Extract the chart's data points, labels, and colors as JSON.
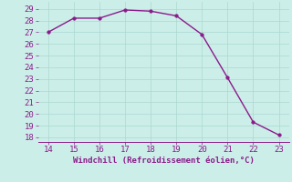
{
  "x": [
    14,
    15,
    16,
    17,
    18,
    19,
    20,
    21,
    22,
    23
  ],
  "y": [
    27.0,
    28.2,
    28.2,
    28.9,
    28.8,
    28.4,
    26.8,
    23.1,
    19.3,
    18.2
  ],
  "line_color": "#8b1a8b",
  "marker_color": "#8b1a8b",
  "bg_color": "#cceee8",
  "grid_color": "#aad8d0",
  "xlabel": "Windchill (Refroidissement éolien,°C)",
  "xlabel_color": "#8b1a8b",
  "xlabel_fontsize": 6.5,
  "tick_color": "#8b1a8b",
  "tick_fontsize": 6.5,
  "xlim": [
    13.6,
    23.4
  ],
  "ylim": [
    17.6,
    29.6
  ],
  "yticks": [
    18,
    19,
    20,
    21,
    22,
    23,
    24,
    25,
    26,
    27,
    28,
    29
  ],
  "xticks": [
    14,
    15,
    16,
    17,
    18,
    19,
    20,
    21,
    22,
    23
  ],
  "line_width": 1.0,
  "marker_size": 2.5
}
